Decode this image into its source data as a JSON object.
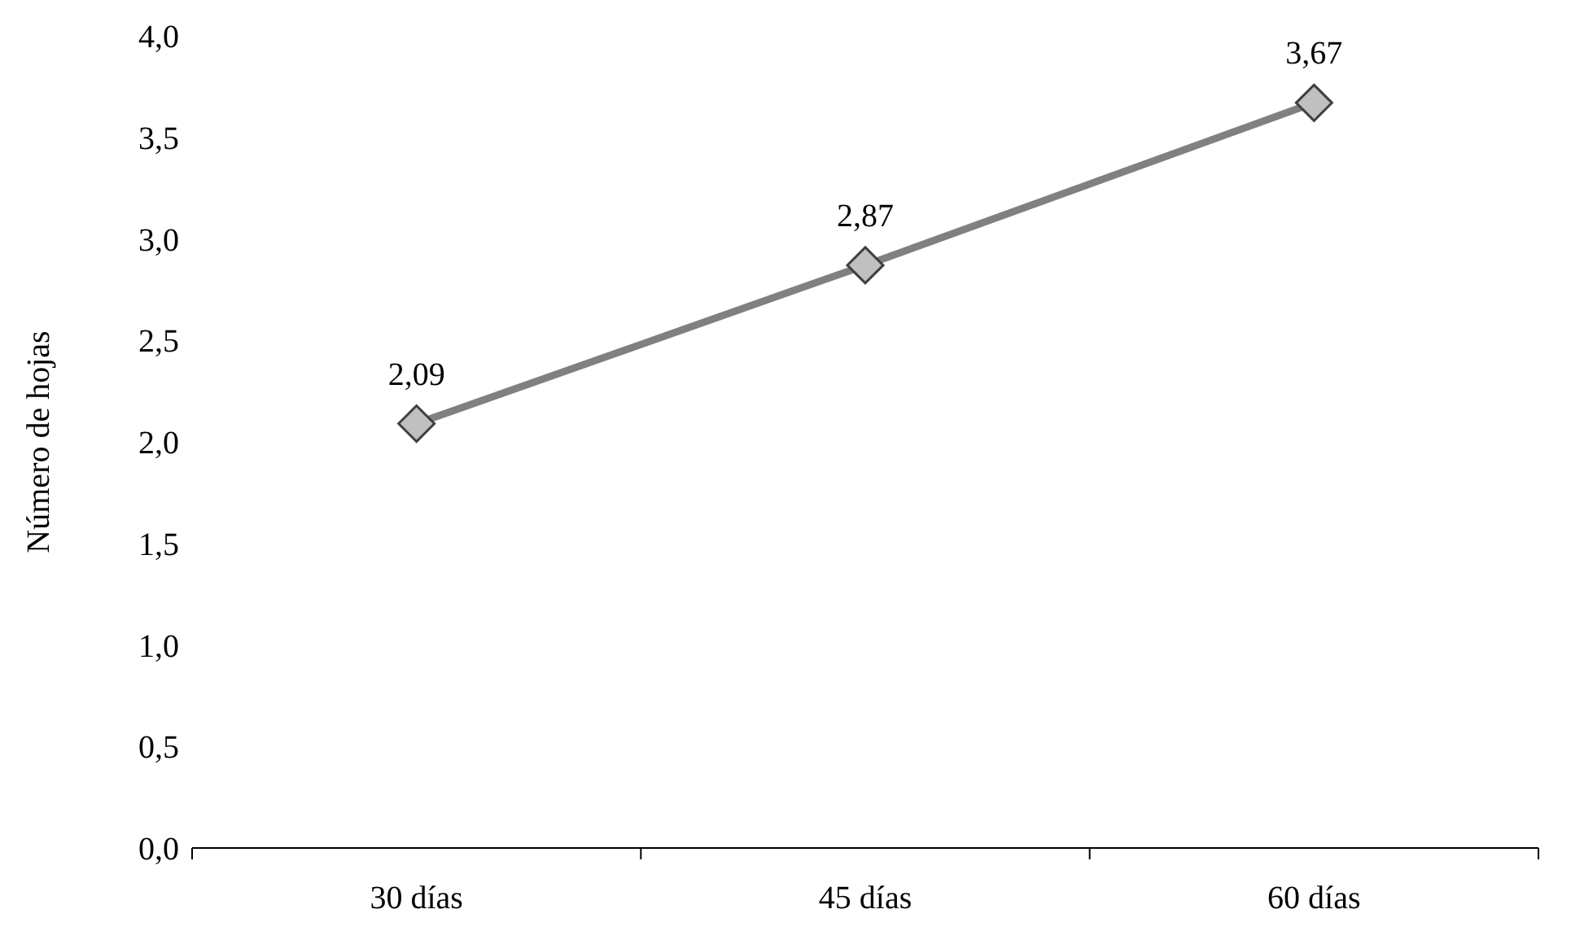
{
  "chart_data": {
    "type": "line",
    "ylabel": "Número de hojas",
    "categories": [
      "30 días",
      "45 días",
      "60 días"
    ],
    "series": [
      {
        "color": "#808080",
        "values": [
          2.09,
          2.87,
          3.67
        ],
        "value_labels": [
          "2,09",
          "2,87",
          "3,67"
        ]
      }
    ],
    "ylim": [
      0,
      4
    ],
    "yticks": [
      {
        "value": 0,
        "label": "0,0"
      },
      {
        "value": 0.5,
        "label": "0,5"
      },
      {
        "value": 1,
        "label": "1,0"
      },
      {
        "value": 1.5,
        "label": "1,5"
      },
      {
        "value": 2,
        "label": "2,0"
      },
      {
        "value": 2.5,
        "label": "2,5"
      },
      {
        "value": 3,
        "label": "3,0"
      },
      {
        "value": 3.5,
        "label": "3,5"
      },
      {
        "value": 4,
        "label": "4,0"
      }
    ],
    "marker": "diamond",
    "grid": false
  }
}
